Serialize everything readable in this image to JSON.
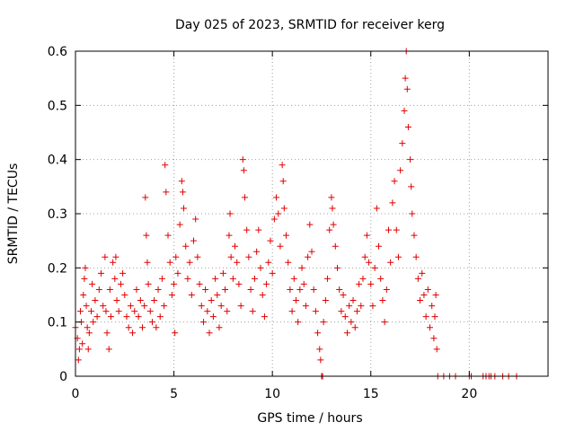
{
  "chart_data": {
    "type": "scatter",
    "title": "Day 025 of 2023, SRMTID for receiver kerg",
    "xlabel": "GPS time / hours",
    "ylabel": "SRMTID / TECUs",
    "xlim": [
      0,
      24
    ],
    "ylim": [
      0,
      0.6
    ],
    "xticks": [
      0,
      5,
      10,
      15,
      20
    ],
    "xtick_labels": [
      "0",
      "5",
      "10",
      "15",
      "20"
    ],
    "yticks": [
      0,
      0.1,
      0.2,
      0.3,
      0.4,
      0.5,
      0.6
    ],
    "ytick_labels": [
      "0",
      "0.1",
      "0.2",
      "0.3",
      "0.4",
      "0.5",
      "0.6"
    ],
    "grid": true,
    "marker": "+",
    "color": "#e00000",
    "series": [
      {
        "name": "SRMTID",
        "points": [
          [
            0.0,
            0.09
          ],
          [
            0.1,
            0.07
          ],
          [
            0.15,
            0.03
          ],
          [
            0.2,
            0.05
          ],
          [
            0.25,
            0.12
          ],
          [
            0.3,
            0.1
          ],
          [
            0.35,
            0.06
          ],
          [
            0.4,
            0.15
          ],
          [
            0.45,
            0.18
          ],
          [
            0.5,
            0.2
          ],
          [
            0.55,
            0.13
          ],
          [
            0.6,
            0.09
          ],
          [
            0.65,
            0.05
          ],
          [
            0.7,
            0.08
          ],
          [
            0.8,
            0.12
          ],
          [
            0.85,
            0.17
          ],
          [
            0.9,
            0.1
          ],
          [
            1.0,
            0.14
          ],
          [
            1.1,
            0.11
          ],
          [
            1.2,
            0.16
          ],
          [
            1.3,
            0.19
          ],
          [
            1.4,
            0.13
          ],
          [
            1.5,
            0.22
          ],
          [
            1.55,
            0.12
          ],
          [
            1.6,
            0.08
          ],
          [
            1.7,
            0.05
          ],
          [
            1.75,
            0.16
          ],
          [
            1.8,
            0.11
          ],
          [
            1.9,
            0.21
          ],
          [
            2.0,
            0.18
          ],
          [
            2.05,
            0.22
          ],
          [
            2.1,
            0.14
          ],
          [
            2.2,
            0.12
          ],
          [
            2.3,
            0.17
          ],
          [
            2.4,
            0.19
          ],
          [
            2.5,
            0.15
          ],
          [
            2.6,
            0.11
          ],
          [
            2.7,
            0.09
          ],
          [
            2.8,
            0.13
          ],
          [
            2.9,
            0.08
          ],
          [
            3.0,
            0.12
          ],
          [
            3.1,
            0.16
          ],
          [
            3.2,
            0.11
          ],
          [
            3.3,
            0.14
          ],
          [
            3.4,
            0.09
          ],
          [
            3.5,
            0.13
          ],
          [
            3.55,
            0.33
          ],
          [
            3.6,
            0.26
          ],
          [
            3.65,
            0.21
          ],
          [
            3.7,
            0.17
          ],
          [
            3.8,
            0.12
          ],
          [
            3.9,
            0.1
          ],
          [
            4.0,
            0.14
          ],
          [
            4.1,
            0.09
          ],
          [
            4.2,
            0.16
          ],
          [
            4.3,
            0.11
          ],
          [
            4.4,
            0.18
          ],
          [
            4.5,
            0.13
          ],
          [
            4.55,
            0.39
          ],
          [
            4.6,
            0.34
          ],
          [
            4.7,
            0.26
          ],
          [
            4.8,
            0.21
          ],
          [
            4.9,
            0.15
          ],
          [
            5.0,
            0.17
          ],
          [
            5.05,
            0.08
          ],
          [
            5.1,
            0.22
          ],
          [
            5.2,
            0.19
          ],
          [
            5.3,
            0.28
          ],
          [
            5.4,
            0.36
          ],
          [
            5.45,
            0.34
          ],
          [
            5.5,
            0.31
          ],
          [
            5.6,
            0.24
          ],
          [
            5.7,
            0.18
          ],
          [
            5.8,
            0.21
          ],
          [
            5.9,
            0.15
          ],
          [
            6.0,
            0.25
          ],
          [
            6.1,
            0.29
          ],
          [
            6.2,
            0.22
          ],
          [
            6.3,
            0.17
          ],
          [
            6.4,
            0.13
          ],
          [
            6.5,
            0.1
          ],
          [
            6.6,
            0.16
          ],
          [
            6.7,
            0.12
          ],
          [
            6.8,
            0.08
          ],
          [
            6.9,
            0.14
          ],
          [
            7.0,
            0.11
          ],
          [
            7.1,
            0.18
          ],
          [
            7.2,
            0.15
          ],
          [
            7.3,
            0.09
          ],
          [
            7.4,
            0.13
          ],
          [
            7.5,
            0.19
          ],
          [
            7.6,
            0.16
          ],
          [
            7.7,
            0.12
          ],
          [
            7.8,
            0.26
          ],
          [
            7.85,
            0.3
          ],
          [
            7.9,
            0.22
          ],
          [
            8.0,
            0.18
          ],
          [
            8.1,
            0.24
          ],
          [
            8.2,
            0.21
          ],
          [
            8.3,
            0.17
          ],
          [
            8.4,
            0.13
          ],
          [
            8.5,
            0.4
          ],
          [
            8.55,
            0.38
          ],
          [
            8.6,
            0.33
          ],
          [
            8.7,
            0.27
          ],
          [
            8.8,
            0.22
          ],
          [
            8.9,
            0.16
          ],
          [
            9.0,
            0.12
          ],
          [
            9.1,
            0.18
          ],
          [
            9.2,
            0.23
          ],
          [
            9.3,
            0.27
          ],
          [
            9.4,
            0.2
          ],
          [
            9.5,
            0.15
          ],
          [
            9.6,
            0.11
          ],
          [
            9.7,
            0.17
          ],
          [
            9.8,
            0.21
          ],
          [
            9.9,
            0.25
          ],
          [
            10.0,
            0.19
          ],
          [
            10.1,
            0.29
          ],
          [
            10.2,
            0.33
          ],
          [
            10.3,
            0.3
          ],
          [
            10.4,
            0.24
          ],
          [
            10.5,
            0.39
          ],
          [
            10.55,
            0.36
          ],
          [
            10.6,
            0.31
          ],
          [
            10.7,
            0.26
          ],
          [
            10.8,
            0.21
          ],
          [
            10.9,
            0.16
          ],
          [
            11.0,
            0.12
          ],
          [
            11.1,
            0.18
          ],
          [
            11.2,
            0.14
          ],
          [
            11.3,
            0.1
          ],
          [
            11.4,
            0.16
          ],
          [
            11.5,
            0.2
          ],
          [
            11.6,
            0.17
          ],
          [
            11.7,
            0.13
          ],
          [
            11.8,
            0.22
          ],
          [
            11.9,
            0.28
          ],
          [
            12.0,
            0.23
          ],
          [
            12.1,
            0.16
          ],
          [
            12.2,
            0.12
          ],
          [
            12.3,
            0.08
          ],
          [
            12.4,
            0.05
          ],
          [
            12.45,
            0.03
          ],
          [
            12.5,
            0.0
          ],
          [
            12.55,
            0.0
          ],
          [
            12.6,
            0.1
          ],
          [
            12.7,
            0.14
          ],
          [
            12.8,
            0.18
          ],
          [
            12.9,
            0.27
          ],
          [
            13.0,
            0.33
          ],
          [
            13.05,
            0.31
          ],
          [
            13.1,
            0.28
          ],
          [
            13.2,
            0.24
          ],
          [
            13.3,
            0.2
          ],
          [
            13.4,
            0.16
          ],
          [
            13.5,
            0.12
          ],
          [
            13.6,
            0.15
          ],
          [
            13.7,
            0.11
          ],
          [
            13.8,
            0.08
          ],
          [
            13.9,
            0.13
          ],
          [
            14.0,
            0.1
          ],
          [
            14.1,
            0.14
          ],
          [
            14.2,
            0.09
          ],
          [
            14.3,
            0.12
          ],
          [
            14.4,
            0.17
          ],
          [
            14.5,
            0.13
          ],
          [
            14.6,
            0.18
          ],
          [
            14.7,
            0.22
          ],
          [
            14.8,
            0.26
          ],
          [
            14.9,
            0.21
          ],
          [
            15.0,
            0.17
          ],
          [
            15.1,
            0.13
          ],
          [
            15.2,
            0.2
          ],
          [
            15.3,
            0.31
          ],
          [
            15.4,
            0.24
          ],
          [
            15.5,
            0.18
          ],
          [
            15.6,
            0.14
          ],
          [
            15.7,
            0.1
          ],
          [
            15.8,
            0.16
          ],
          [
            15.9,
            0.27
          ],
          [
            16.0,
            0.21
          ],
          [
            16.1,
            0.32
          ],
          [
            16.2,
            0.36
          ],
          [
            16.3,
            0.27
          ],
          [
            16.4,
            0.22
          ],
          [
            16.5,
            0.38
          ],
          [
            16.6,
            0.43
          ],
          [
            16.7,
            0.49
          ],
          [
            16.75,
            0.55
          ],
          [
            16.8,
            0.6
          ],
          [
            16.85,
            0.53
          ],
          [
            16.9,
            0.46
          ],
          [
            17.0,
            0.4
          ],
          [
            17.05,
            0.35
          ],
          [
            17.1,
            0.3
          ],
          [
            17.2,
            0.26
          ],
          [
            17.3,
            0.22
          ],
          [
            17.4,
            0.18
          ],
          [
            17.5,
            0.14
          ],
          [
            17.6,
            0.19
          ],
          [
            17.7,
            0.15
          ],
          [
            17.8,
            0.11
          ],
          [
            17.9,
            0.16
          ],
          [
            18.0,
            0.09
          ],
          [
            18.1,
            0.13
          ],
          [
            18.2,
            0.07
          ],
          [
            18.25,
            0.11
          ],
          [
            18.3,
            0.15
          ],
          [
            18.35,
            0.05
          ],
          [
            18.4,
            0.0
          ],
          [
            18.7,
            0.0
          ],
          [
            19.0,
            0.0
          ],
          [
            19.3,
            0.0
          ],
          [
            20.0,
            0.0
          ],
          [
            20.1,
            0.0
          ],
          [
            20.7,
            0.0
          ],
          [
            20.85,
            0.0
          ],
          [
            21.0,
            0.0
          ],
          [
            21.1,
            0.0
          ],
          [
            21.3,
            0.0
          ],
          [
            21.7,
            0.0
          ],
          [
            22.0,
            0.0
          ],
          [
            22.4,
            0.0
          ]
        ]
      }
    ]
  }
}
